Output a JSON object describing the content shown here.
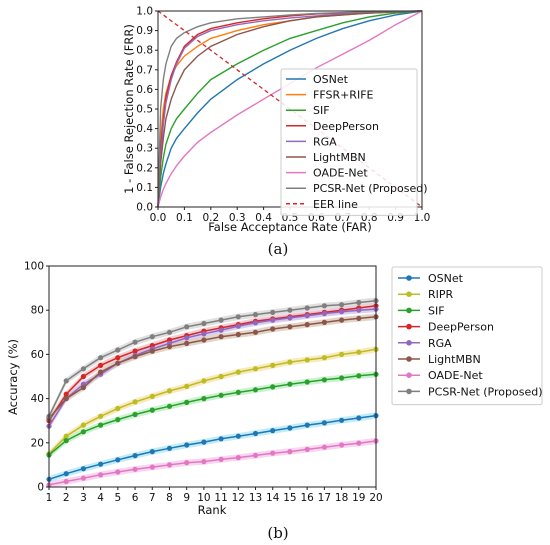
{
  "chart_data": [
    {
      "type": "line",
      "caption": "(a)",
      "xlabel": "False Acceptance Rate (FAR)",
      "ylabel": "1 - False Rejection Rate (FRR)",
      "xlim": [
        0,
        1
      ],
      "ylim": [
        0,
        1
      ],
      "x_ticks": [
        "0.0",
        "0.1",
        "0.2",
        "0.3",
        "0.4",
        "0.5",
        "0.6",
        "0.7",
        "0.8",
        "0.9",
        "1.0"
      ],
      "y_ticks": [
        "0.0",
        "0.1",
        "0.2",
        "0.3",
        "0.4",
        "0.5",
        "0.6",
        "0.7",
        "0.8",
        "0.9",
        "1.0"
      ],
      "grid": false,
      "legend_position": "bottom-right",
      "x": [
        0,
        0.01,
        0.02,
        0.03,
        0.05,
        0.07,
        0.1,
        0.15,
        0.2,
        0.3,
        0.4,
        0.5,
        0.6,
        0.7,
        0.8,
        0.9,
        1.0
      ],
      "series": [
        {
          "name": "OSNet",
          "color": "#1f77b4",
          "values": [
            0.0,
            0.1,
            0.17,
            0.22,
            0.3,
            0.35,
            0.4,
            0.48,
            0.55,
            0.65,
            0.73,
            0.8,
            0.86,
            0.91,
            0.95,
            0.98,
            1.0
          ]
        },
        {
          "name": "FFSR+RIFE",
          "color": "#ff7f0e",
          "values": [
            0.0,
            0.35,
            0.5,
            0.58,
            0.67,
            0.72,
            0.77,
            0.82,
            0.86,
            0.9,
            0.93,
            0.95,
            0.97,
            0.98,
            0.99,
            0.995,
            1.0
          ]
        },
        {
          "name": "SIF",
          "color": "#2ca02c",
          "values": [
            0.0,
            0.15,
            0.25,
            0.32,
            0.4,
            0.45,
            0.5,
            0.58,
            0.65,
            0.73,
            0.8,
            0.86,
            0.9,
            0.94,
            0.97,
            0.99,
            1.0
          ]
        },
        {
          "name": "DeepPerson",
          "color": "#d62728",
          "values": [
            0.0,
            0.3,
            0.45,
            0.56,
            0.67,
            0.74,
            0.82,
            0.88,
            0.91,
            0.94,
            0.96,
            0.975,
            0.985,
            0.99,
            0.995,
            0.998,
            1.0
          ]
        },
        {
          "name": "RGA",
          "color": "#9467bd",
          "values": [
            0.0,
            0.25,
            0.42,
            0.53,
            0.65,
            0.73,
            0.81,
            0.87,
            0.9,
            0.93,
            0.95,
            0.965,
            0.975,
            0.985,
            0.99,
            0.995,
            1.0
          ]
        },
        {
          "name": "LightMBN",
          "color": "#8c564b",
          "values": [
            0.0,
            0.22,
            0.35,
            0.45,
            0.55,
            0.62,
            0.7,
            0.77,
            0.82,
            0.88,
            0.92,
            0.95,
            0.97,
            0.98,
            0.99,
            0.995,
            1.0
          ]
        },
        {
          "name": "OADE-Net",
          "color": "#e377c2",
          "values": [
            0.0,
            0.05,
            0.09,
            0.12,
            0.17,
            0.21,
            0.26,
            0.33,
            0.38,
            0.47,
            0.55,
            0.63,
            0.71,
            0.78,
            0.85,
            0.93,
            1.0
          ]
        },
        {
          "name": "PCSR-Net (Proposed)",
          "color": "#7f7f7f",
          "values": [
            0.0,
            0.5,
            0.65,
            0.73,
            0.82,
            0.86,
            0.89,
            0.92,
            0.94,
            0.96,
            0.97,
            0.98,
            0.987,
            0.992,
            0.996,
            0.998,
            1.0
          ]
        }
      ],
      "reference_line": {
        "name": "EER line",
        "color": "#d62728",
        "style": "dashed",
        "x": [
          0,
          1
        ],
        "y": [
          1,
          0
        ]
      }
    },
    {
      "type": "line",
      "caption": "(b)",
      "xlabel": "Rank",
      "ylabel": "Accuracy (%)",
      "xlim": [
        1,
        20
      ],
      "ylim": [
        0,
        100
      ],
      "x_ticks": [
        "1",
        "2",
        "3",
        "4",
        "5",
        "6",
        "7",
        "8",
        "9",
        "10",
        "11",
        "12",
        "13",
        "14",
        "15",
        "16",
        "17",
        "18",
        "19",
        "20"
      ],
      "y_ticks": [
        "0",
        "20",
        "40",
        "60",
        "80",
        "100"
      ],
      "grid": false,
      "legend_position": "outside-right",
      "x": [
        1,
        2,
        3,
        4,
        5,
        6,
        7,
        8,
        9,
        10,
        11,
        12,
        13,
        14,
        15,
        16,
        17,
        18,
        19,
        20
      ],
      "series": [
        {
          "name": "OSNet",
          "color": "#1f77b4",
          "values": [
            3.5,
            6,
            8.3,
            10.3,
            12.3,
            14.2,
            16,
            17.5,
            19,
            20.3,
            21.8,
            23,
            24.2,
            25.5,
            26.7,
            28,
            29,
            30.2,
            31.2,
            32.3
          ]
        },
        {
          "name": "RIPR",
          "color": "#bcbd22",
          "values": [
            15,
            23,
            28,
            32,
            35.5,
            38.5,
            41,
            43.5,
            45.5,
            48,
            50,
            52,
            53.5,
            55,
            56.5,
            57.5,
            58.5,
            60,
            61,
            62.3
          ]
        },
        {
          "name": "SIF",
          "color": "#2ca02c",
          "values": [
            14.5,
            21,
            25,
            28,
            30.5,
            32.8,
            34.8,
            36.5,
            38.3,
            40,
            41.5,
            42.8,
            44,
            45.3,
            46.5,
            47.5,
            48.5,
            49.3,
            50.3,
            51
          ]
        },
        {
          "name": "DeepPerson",
          "color": "#d62728",
          "values": [
            30,
            42,
            50,
            55,
            58.5,
            61.5,
            64,
            66.5,
            68.5,
            70.5,
            72,
            73.5,
            75,
            76,
            77,
            78,
            79,
            80,
            81,
            82
          ]
        },
        {
          "name": "RGA",
          "color": "#9467bd",
          "values": [
            27.5,
            40,
            46.5,
            51,
            56,
            59.5,
            62.5,
            65,
            67.5,
            69.3,
            71,
            72.8,
            74.3,
            75.5,
            76.5,
            77.5,
            78.5,
            79.3,
            80,
            80.5
          ]
        },
        {
          "name": "LightMBN",
          "color": "#8c564b",
          "values": [
            31,
            40,
            45,
            52,
            56,
            59,
            61.5,
            63.5,
            65,
            66.5,
            68,
            69,
            70,
            71.5,
            72.5,
            73.5,
            74.5,
            75.5,
            76.3,
            77
          ]
        },
        {
          "name": "OADE-Net",
          "color": "#e377c2",
          "values": [
            1,
            2.5,
            4,
            5.5,
            6.8,
            8,
            9,
            10,
            11,
            11.5,
            12.5,
            13.3,
            14.3,
            15.3,
            16,
            17,
            18,
            19,
            19.8,
            20.8
          ]
        },
        {
          "name": "PCSR-Net (Proposed)",
          "color": "#7f7f7f",
          "values": [
            32,
            48,
            53.5,
            58.5,
            62,
            65.5,
            68,
            70,
            72.5,
            74,
            75.5,
            77,
            78,
            79,
            80,
            81,
            82,
            82.5,
            83.5,
            84.3
          ]
        }
      ],
      "band_colors": {
        "OSNet": "#aee6f5",
        "RIPR": "#f7e2a8",
        "SIF": "#b8eec0",
        "DeepPerson": "#f2bfc0",
        "RGA": "#ccc0ee",
        "LightMBN": "#d8c6b4",
        "OADE-Net": "#f5c8ec",
        "PCSR-Net (Proposed)": "#d6d6d6"
      }
    }
  ]
}
